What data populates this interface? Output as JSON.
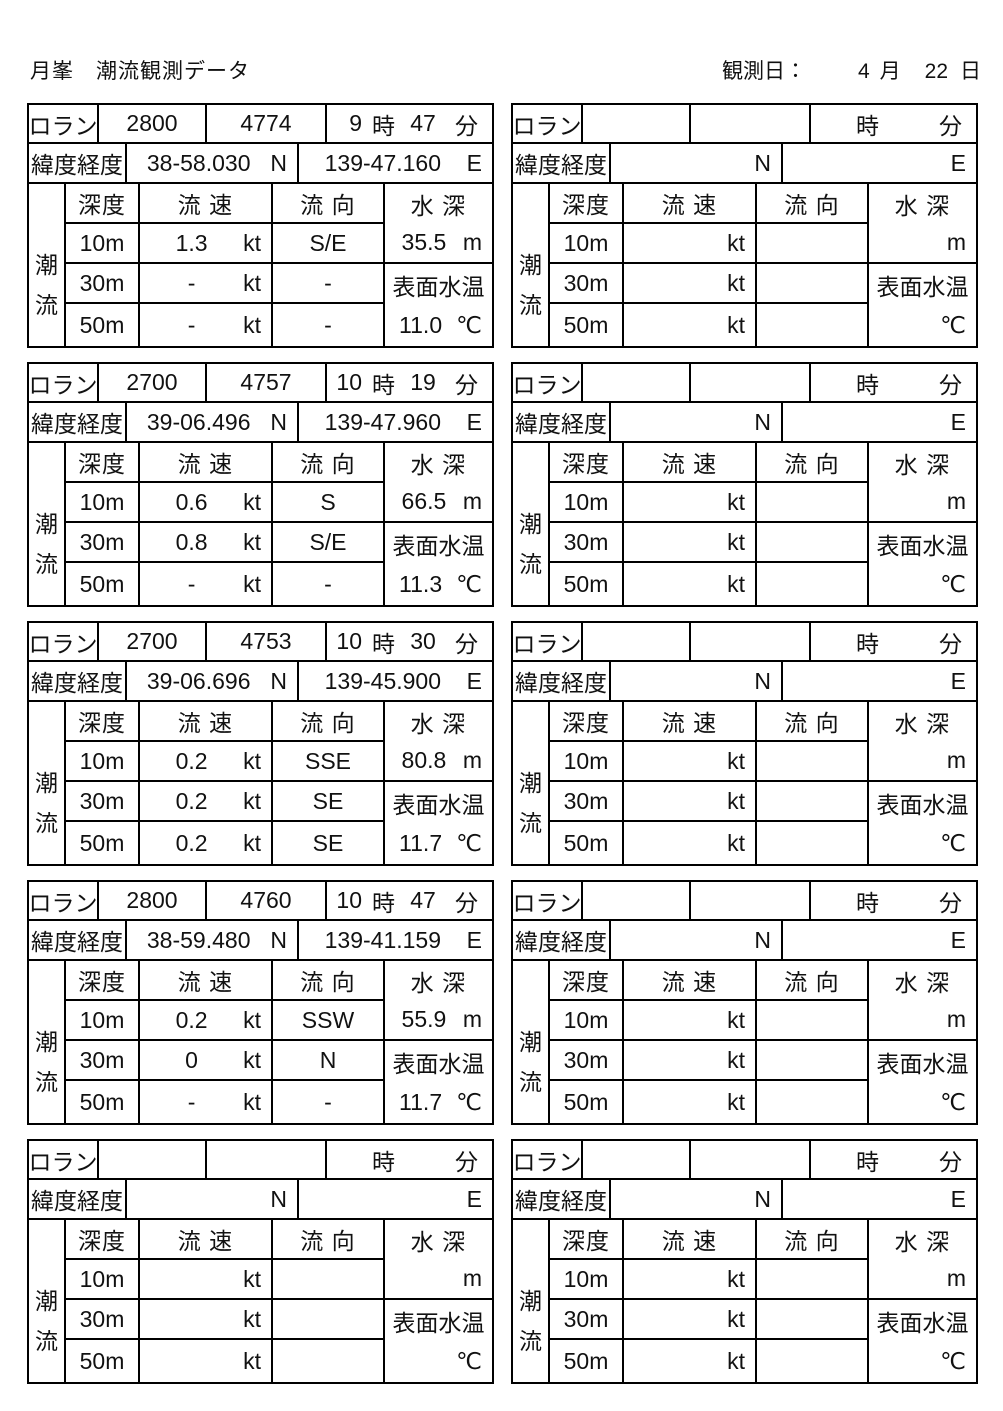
{
  "page": {
    "title": "月峯　潮流観測データ",
    "obs_date_label": "観測日：",
    "obs_date": {
      "month": "4",
      "month_label": "月",
      "day": "22",
      "day_label": "日"
    }
  },
  "labels": {
    "loran": "ロラン",
    "latlon": "緯度経度",
    "north": "N",
    "east": "E",
    "hour": "時",
    "minute": "分",
    "tide_char_1": "潮",
    "tide_char_2": "流",
    "depth": "深度",
    "speed": "流 速",
    "direction": "流 向",
    "water_depth": "水 深",
    "kt": "kt",
    "m": "m",
    "surface_temp": "表面水温",
    "celsius": "℃",
    "depth10": "10m",
    "depth30": "30m",
    "depth50": "50m"
  },
  "tables": [
    {
      "loran1": "2800",
      "loran2": "4774",
      "hour": "9",
      "minute": "47",
      "lat": "38-58.030",
      "lon": "139-47.160",
      "speed10": "1.3",
      "dir10": "S/E",
      "speed30": "-",
      "dir30": "-",
      "speed50": "-",
      "dir50": "-",
      "water_depth": "35.5",
      "temp": "11.0"
    },
    {
      "loran1": "",
      "loran2": "",
      "hour": "",
      "minute": "",
      "lat": "",
      "lon": "",
      "speed10": "",
      "dir10": "",
      "speed30": "",
      "dir30": "",
      "speed50": "",
      "dir50": "",
      "water_depth": "",
      "temp": ""
    },
    {
      "loran1": "2700",
      "loran2": "4757",
      "hour": "10",
      "minute": "19",
      "lat": "39-06.496",
      "lon": "139-47.960",
      "speed10": "0.6",
      "dir10": "S",
      "speed30": "0.8",
      "dir30": "S/E",
      "speed50": "-",
      "dir50": "-",
      "water_depth": "66.5",
      "temp": "11.3"
    },
    {
      "loran1": "",
      "loran2": "",
      "hour": "",
      "minute": "",
      "lat": "",
      "lon": "",
      "speed10": "",
      "dir10": "",
      "speed30": "",
      "dir30": "",
      "speed50": "",
      "dir50": "",
      "water_depth": "",
      "temp": ""
    },
    {
      "loran1": "2700",
      "loran2": "4753",
      "hour": "10",
      "minute": "30",
      "lat": "39-06.696",
      "lon": "139-45.900",
      "speed10": "0.2",
      "dir10": "SSE",
      "speed30": "0.2",
      "dir30": "SE",
      "speed50": "0.2",
      "dir50": "SE",
      "water_depth": "80.8",
      "temp": "11.7"
    },
    {
      "loran1": "",
      "loran2": "",
      "hour": "",
      "minute": "",
      "lat": "",
      "lon": "",
      "speed10": "",
      "dir10": "",
      "speed30": "",
      "dir30": "",
      "speed50": "",
      "dir50": "",
      "water_depth": "",
      "temp": ""
    },
    {
      "loran1": "2800",
      "loran2": "4760",
      "hour": "10",
      "minute": "47",
      "lat": "38-59.480",
      "lon": "139-41.159",
      "speed10": "0.2",
      "dir10": "SSW",
      "speed30": "0",
      "dir30": "N",
      "speed50": "-",
      "dir50": "-",
      "water_depth": "55.9",
      "temp": "11.7"
    },
    {
      "loran1": "",
      "loran2": "",
      "hour": "",
      "minute": "",
      "lat": "",
      "lon": "",
      "speed10": "",
      "dir10": "",
      "speed30": "",
      "dir30": "",
      "speed50": "",
      "dir50": "",
      "water_depth": "",
      "temp": ""
    },
    {
      "loran1": "",
      "loran2": "",
      "hour": "",
      "minute": "",
      "lat": "",
      "lon": "",
      "speed10": "",
      "dir10": "",
      "speed30": "",
      "dir30": "",
      "speed50": "",
      "dir50": "",
      "water_depth": "",
      "temp": ""
    },
    {
      "loran1": "",
      "loran2": "",
      "hour": "",
      "minute": "",
      "lat": "",
      "lon": "",
      "speed10": "",
      "dir10": "",
      "speed30": "",
      "dir30": "",
      "speed50": "",
      "dir50": "",
      "water_depth": "",
      "temp": ""
    }
  ]
}
